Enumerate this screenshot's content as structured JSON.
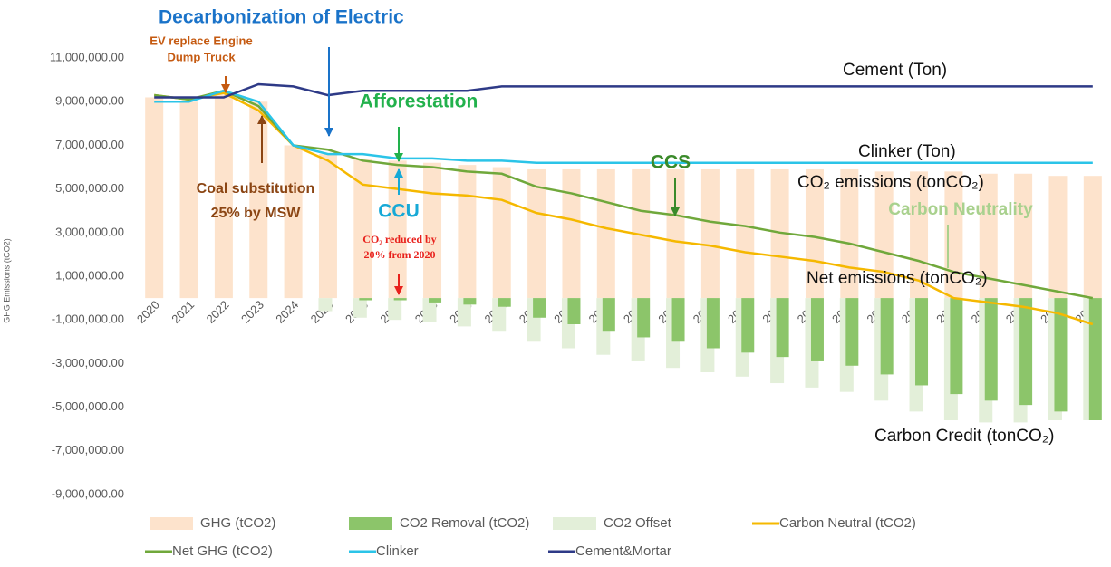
{
  "chart_data": {
    "type": "combo",
    "y_label": "GHG Emissions (tCO2)",
    "categories": [
      "2020",
      "2021",
      "2022",
      "2023",
      "2024",
      "2025",
      "2026",
      "2027",
      "2028",
      "2029",
      "2030",
      "2031",
      "2032",
      "2033",
      "2034",
      "2035",
      "2036",
      "2037",
      "2038",
      "2039",
      "2040",
      "2041",
      "2042",
      "2043",
      "2044",
      "2045",
      "2046",
      "2047"
    ],
    "ylim": [
      -10000000,
      12000000
    ],
    "yticks": [
      {
        "value": -9000000,
        "label": "-9,000,000.00"
      },
      {
        "value": -7000000,
        "label": "-7,000,000.00"
      },
      {
        "value": -5000000,
        "label": "-5,000,000.00"
      },
      {
        "value": -3000000,
        "label": "-3,000,000.00"
      },
      {
        "value": -1000000,
        "label": "-1,000,000.00"
      },
      {
        "value": 1000000,
        "label": "1,000,000.00"
      },
      {
        "value": 3000000,
        "label": "3,000,000.00"
      },
      {
        "value": 5000000,
        "label": "5,000,000.00"
      },
      {
        "value": 7000000,
        "label": "7,000,000.00"
      },
      {
        "value": 9000000,
        "label": "9,000,000.00"
      },
      {
        "value": 11000000,
        "label": "11,000,000.00"
      }
    ],
    "series": [
      {
        "name": "GHG (tCO2)",
        "type": "bar",
        "color": "#fde3cc",
        "values": [
          9200000,
          9000000,
          9400000,
          9000000,
          7000000,
          6600000,
          6400000,
          6300000,
          6200000,
          6100000,
          6000000,
          5900000,
          5900000,
          5900000,
          5900000,
          5900000,
          5900000,
          5900000,
          5900000,
          5900000,
          5900000,
          5800000,
          5800000,
          5800000,
          5700000,
          5700000,
          5600000,
          5600000
        ]
      },
      {
        "name": "CO2 Removal (tCO2)",
        "type": "bar",
        "color": "#8cc56a",
        "values": [
          0,
          0,
          0,
          0,
          0,
          0,
          -100000,
          -100000,
          -200000,
          -300000,
          -400000,
          -900000,
          -1200000,
          -1500000,
          -1800000,
          -2000000,
          -2300000,
          -2500000,
          -2700000,
          -2900000,
          -3100000,
          -3500000,
          -4000000,
          -4400000,
          -4700000,
          -4900000,
          -5200000,
          -5600000
        ]
      },
      {
        "name": "CO2 Offset",
        "type": "bar",
        "color": "#e3efd9",
        "values": [
          0,
          0,
          0,
          0,
          0,
          -600000,
          -900000,
          -1000000,
          -1100000,
          -1300000,
          -1500000,
          -2000000,
          -2300000,
          -2600000,
          -2900000,
          -3200000,
          -3400000,
          -3600000,
          -3900000,
          -4100000,
          -4300000,
          -4700000,
          -5200000,
          -5600000,
          -5700000,
          -5700000,
          -5600000,
          -5600000
        ]
      },
      {
        "name": "Carbon Neutral (tCO2)",
        "type": "line",
        "color": "#f5b800",
        "values": [
          9300000,
          9100000,
          9400000,
          8600000,
          7000000,
          6300000,
          5200000,
          5000000,
          4800000,
          4700000,
          4500000,
          3900000,
          3600000,
          3200000,
          2900000,
          2600000,
          2400000,
          2100000,
          1900000,
          1700000,
          1400000,
          1200000,
          800000,
          0,
          -200000,
          -400000,
          -700000,
          -1200000
        ]
      },
      {
        "name": "Net GHG (tCO2)",
        "type": "line",
        "color": "#70a83b",
        "values": [
          9300000,
          9100000,
          9500000,
          8800000,
          7000000,
          6800000,
          6300000,
          6100000,
          6000000,
          5800000,
          5700000,
          5100000,
          4800000,
          4400000,
          4000000,
          3800000,
          3500000,
          3300000,
          3000000,
          2800000,
          2500000,
          2100000,
          1700000,
          1200000,
          900000,
          600000,
          300000,
          0
        ]
      },
      {
        "name": "Clinker",
        "type": "line",
        "color": "#2bc4e8",
        "values": [
          9000000,
          9000000,
          9500000,
          9000000,
          7000000,
          6600000,
          6600000,
          6400000,
          6400000,
          6300000,
          6300000,
          6200000,
          6200000,
          6200000,
          6200000,
          6200000,
          6200000,
          6200000,
          6200000,
          6200000,
          6200000,
          6200000,
          6200000,
          6200000,
          6200000,
          6200000,
          6200000,
          6200000
        ]
      },
      {
        "name": "Cement&Mortar",
        "type": "line",
        "color": "#2e3a87",
        "values": [
          9200000,
          9200000,
          9200000,
          9800000,
          9700000,
          9300000,
          9500000,
          9500000,
          9500000,
          9500000,
          9700000,
          9700000,
          9700000,
          9700000,
          9700000,
          9700000,
          9700000,
          9700000,
          9700000,
          9700000,
          9700000,
          9700000,
          9700000,
          9700000,
          9700000,
          9700000,
          9700000,
          9700000
        ]
      }
    ],
    "annotations": [
      "Decarbonization of Electric",
      "EV replace Engine",
      "Dump Truck",
      "Cement (Ton)",
      "Afforestation",
      "Clinker (Ton)",
      "CCS",
      "Coal substitution",
      "25% by MSW",
      "CO₂ emissions (tonCO₂)",
      "CCU",
      "Carbon Neutrality",
      "CO₂ reduced by",
      "20% from 2020",
      "Net emissions (tonCO₂)",
      "Carbon Credit (tonCO₂)"
    ]
  }
}
